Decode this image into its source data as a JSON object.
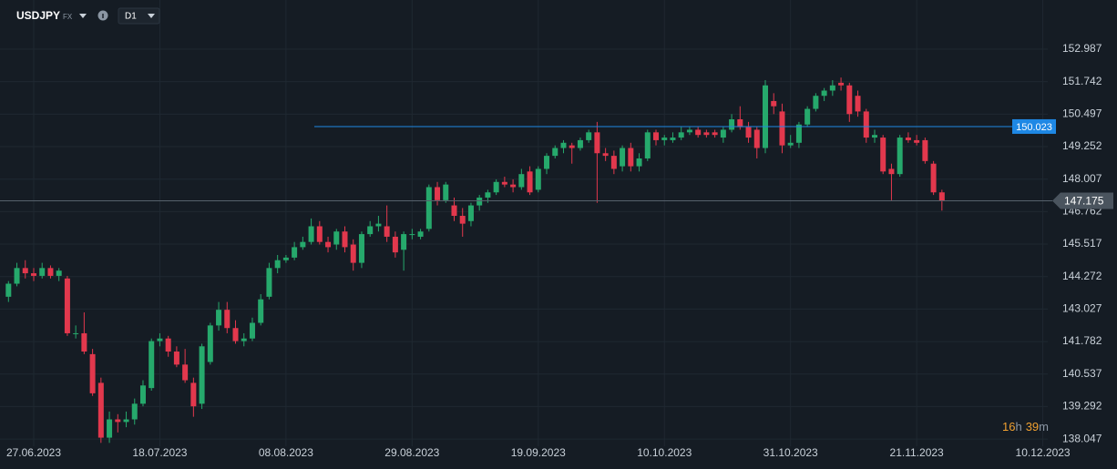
{
  "header": {
    "symbol": "USDJPY",
    "market": "FX",
    "timeframe": "D1"
  },
  "countdown": [
    "16",
    "h",
    "39",
    "m"
  ],
  "chart_data": {
    "type": "candlestick",
    "categories": [
      null,
      null,
      null,
      "27.06.2023",
      null,
      null,
      null,
      null,
      null,
      null,
      null,
      null,
      null,
      null,
      null,
      null,
      null,
      null,
      "18.07.2023",
      null,
      null,
      null,
      null,
      null,
      null,
      null,
      null,
      null,
      null,
      null,
      null,
      null,
      null,
      "08.08.2023",
      null,
      null,
      null,
      null,
      null,
      null,
      null,
      null,
      null,
      null,
      null,
      null,
      null,
      null,
      "29.08.2023",
      null,
      null,
      null,
      null,
      null,
      null,
      null,
      null,
      null,
      null,
      null,
      null,
      null,
      null,
      "19.09.2023",
      null,
      null,
      null,
      null,
      null,
      null,
      null,
      null,
      null,
      null,
      null,
      null,
      null,
      null,
      "10.10.2023",
      null,
      null,
      null,
      null,
      null,
      null,
      null,
      null,
      null,
      null,
      null,
      null,
      null,
      null,
      "31.10.2023",
      null,
      null,
      null,
      null,
      null,
      null,
      null,
      null,
      null,
      null,
      null,
      null,
      null,
      null,
      "21.11.2023",
      null,
      null,
      null,
      null,
      null,
      null,
      null,
      null,
      null,
      null,
      null,
      null,
      null,
      null,
      "10.12.2023",
      null
    ],
    "open": [
      143.5,
      144.0,
      144.6,
      144.4,
      144.3,
      144.6,
      144.3,
      144.2,
      142.1,
      142.1,
      141.3,
      140.2,
      138.1,
      138.8,
      138.7,
      138.8,
      139.4,
      140.0,
      141.8,
      141.9,
      141.4,
      140.9,
      140.2,
      139.4,
      141.0,
      142.4,
      143.0,
      142.3,
      141.8,
      141.9,
      142.5,
      143.5,
      144.6,
      144.9,
      145.0,
      145.4,
      145.6,
      146.2,
      145.6,
      145.5,
      146.0,
      145.5,
      144.8,
      145.9,
      146.2,
      146.2,
      145.8,
      145.3,
      145.9,
      145.8,
      146.1,
      147.7,
      147.2,
      147.0,
      146.6,
      146.4,
      147.0,
      147.3,
      147.5,
      147.9,
      147.8,
      147.7,
      148.3,
      147.6,
      148.4,
      148.9,
      149.2,
      149.3,
      149.2,
      149.5,
      149.8,
      149.0,
      148.9,
      148.5,
      149.2,
      148.5,
      148.8,
      149.8,
      149.5,
      149.5,
      149.6,
      149.8,
      149.9,
      149.8,
      149.8,
      149.6,
      149.9,
      150.3,
      150.0,
      149.9,
      149.2,
      151.0,
      150.6,
      149.3,
      149.4,
      150.1,
      150.7,
      151.2,
      151.4,
      151.7,
      151.6,
      151.2,
      150.6,
      149.6,
      149.6,
      148.4,
      148.2,
      149.6,
      149.5,
      149.5,
      148.6,
      147.5,
      null,
      null,
      null,
      null,
      null,
      null,
      null,
      null,
      null,
      null,
      null,
      null,
      null
    ],
    "high": [
      144.1,
      144.8,
      144.9,
      144.6,
      144.8,
      144.7,
      144.6,
      144.3,
      142.4,
      142.9,
      141.5,
      140.4,
      139.1,
      139.0,
      139.1,
      139.6,
      140.3,
      141.9,
      142.1,
      142.0,
      141.6,
      141.5,
      140.4,
      141.7,
      142.5,
      143.3,
      143.3,
      142.6,
      142.1,
      142.7,
      143.6,
      144.8,
      145.1,
      145.1,
      145.6,
      145.8,
      146.5,
      146.4,
      145.8,
      146.1,
      146.2,
      145.7,
      146.0,
      146.4,
      146.6,
      147.0,
      146.0,
      146.0,
      146.1,
      146.1,
      147.8,
      147.9,
      147.9,
      147.3,
      146.9,
      147.1,
      147.4,
      147.6,
      148.0,
      148.1,
      148.0,
      148.4,
      148.5,
      148.5,
      149.0,
      149.3,
      149.5,
      149.4,
      149.6,
      149.9,
      150.2,
      149.2,
      149.1,
      149.3,
      149.4,
      149.0,
      149.9,
      149.9,
      149.7,
      149.8,
      150.0,
      150.0,
      150.0,
      149.9,
      149.9,
      150.0,
      150.5,
      150.8,
      150.2,
      150.0,
      151.8,
      151.3,
      150.9,
      149.7,
      150.2,
      150.8,
      151.3,
      151.5,
      151.8,
      151.9,
      151.7,
      151.4,
      150.7,
      149.9,
      149.7,
      148.6,
      149.7,
      149.8,
      149.7,
      149.6,
      148.7,
      147.6,
      null,
      null,
      null,
      null,
      null,
      null,
      null,
      null,
      null,
      null,
      null,
      null,
      null
    ],
    "low": [
      143.3,
      143.9,
      144.2,
      144.1,
      144.2,
      144.2,
      144.1,
      142.0,
      141.9,
      141.3,
      139.7,
      137.9,
      137.9,
      138.3,
      138.5,
      138.6,
      139.3,
      139.9,
      141.6,
      141.2,
      140.8,
      140.2,
      138.9,
      139.2,
      140.9,
      142.2,
      142.1,
      141.7,
      141.6,
      141.8,
      142.4,
      143.4,
      144.4,
      144.8,
      144.9,
      145.3,
      145.5,
      145.5,
      145.2,
      145.3,
      145.2,
      144.5,
      144.6,
      145.8,
      146.0,
      145.6,
      145.0,
      144.5,
      145.7,
      145.7,
      146.0,
      147.0,
      147.1,
      146.4,
      145.8,
      146.2,
      146.8,
      147.1,
      147.4,
      147.7,
      147.5,
      147.6,
      147.4,
      147.5,
      148.2,
      148.8,
      149.0,
      148.6,
      149.1,
      149.4,
      147.1,
      148.7,
      148.2,
      148.3,
      148.3,
      148.3,
      148.7,
      149.3,
      149.3,
      149.4,
      149.5,
      149.7,
      149.6,
      149.6,
      149.6,
      149.4,
      149.8,
      149.9,
      149.4,
      148.8,
      149.0,
      150.5,
      149.0,
      149.2,
      149.2,
      150.0,
      150.6,
      151.0,
      151.2,
      151.4,
      150.2,
      150.4,
      149.4,
      149.4,
      148.2,
      147.2,
      148.1,
      149.4,
      149.3,
      148.6,
      147.4,
      146.8,
      null,
      null,
      null,
      null,
      null,
      null,
      null,
      null,
      null,
      null,
      null,
      null,
      null
    ],
    "close": [
      144.0,
      144.6,
      144.4,
      144.3,
      144.6,
      144.3,
      144.5,
      142.1,
      142.1,
      141.4,
      139.8,
      138.1,
      138.8,
      138.7,
      138.8,
      139.4,
      140.1,
      141.8,
      141.9,
      141.4,
      140.9,
      140.3,
      139.3,
      141.6,
      142.4,
      143.0,
      142.3,
      141.8,
      141.9,
      142.5,
      143.4,
      144.6,
      144.9,
      145.0,
      145.4,
      145.6,
      146.2,
      145.6,
      145.4,
      146.0,
      145.4,
      144.8,
      145.9,
      146.2,
      146.3,
      145.8,
      145.2,
      145.9,
      145.9,
      146.0,
      147.7,
      147.2,
      147.8,
      146.6,
      146.3,
      147.0,
      147.3,
      147.5,
      147.9,
      147.8,
      147.7,
      148.2,
      147.5,
      148.4,
      148.9,
      149.2,
      149.4,
      149.2,
      149.5,
      149.8,
      149.0,
      148.9,
      148.4,
      149.2,
      148.5,
      148.8,
      149.8,
      149.5,
      149.6,
      149.6,
      149.8,
      149.9,
      149.7,
      149.7,
      149.7,
      149.9,
      150.3,
      150.0,
      149.6,
      149.2,
      151.6,
      150.8,
      149.3,
      149.4,
      150.1,
      150.7,
      151.2,
      151.4,
      151.6,
      151.6,
      150.5,
      150.6,
      149.6,
      149.7,
      148.3,
      148.2,
      149.6,
      149.5,
      149.4,
      148.7,
      147.5,
      147.175,
      null,
      null,
      null,
      null,
      null,
      null,
      null,
      null,
      null,
      null,
      null,
      null,
      null
    ],
    "up_color": "#26a96c",
    "down_color": "#e2384d",
    "ylim": [
      137.771,
      154.872
    ],
    "yticks": [
      152.987,
      151.742,
      150.497,
      149.252,
      148.007,
      146.762,
      145.517,
      144.272,
      143.027,
      141.782,
      140.537,
      139.292,
      138.047
    ],
    "grid": true,
    "levels": [
      {
        "value": 150.023,
        "color": "#1e88e5"
      }
    ],
    "last_price": 147.175
  }
}
